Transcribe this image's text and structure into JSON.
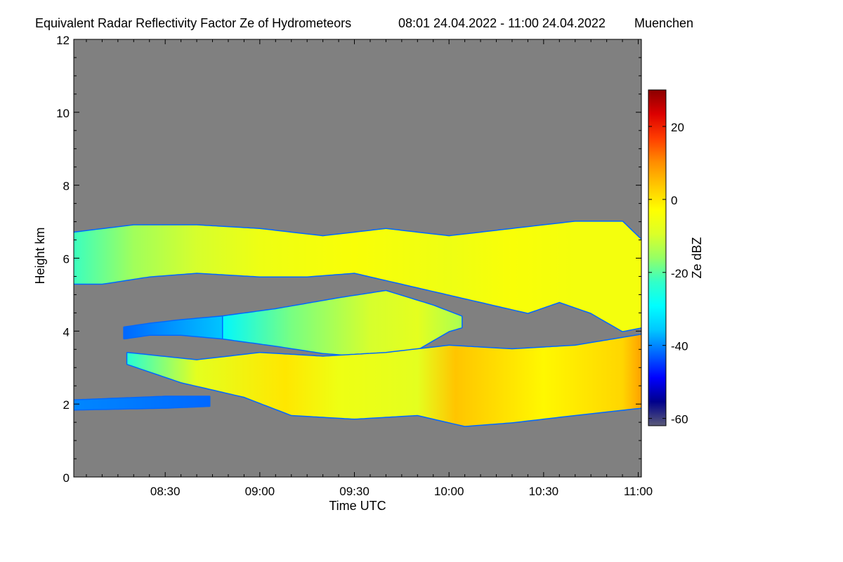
{
  "chart_data": {
    "type": "heatmap",
    "title": "Equivalent Radar Reflectivity Factor Ze of Hydrometeors",
    "time_range": "08:01 24.04.2022 - 11:00 24.04.2022",
    "location": "Muenchen",
    "xlabel": "Time UTC",
    "ylabel": "Height km",
    "xlim_minutes": [
      481,
      661
    ],
    "ylim": [
      0,
      12
    ],
    "x_ticks": [
      {
        "minutes": 510,
        "label": "08:30"
      },
      {
        "minutes": 540,
        "label": "09:00"
      },
      {
        "minutes": 570,
        "label": "09:30"
      },
      {
        "minutes": 600,
        "label": "10:00"
      },
      {
        "minutes": 630,
        "label": "10:30"
      },
      {
        "minutes": 660,
        "label": "11:00"
      }
    ],
    "y_ticks": [
      0,
      2,
      4,
      6,
      8,
      10,
      12
    ],
    "background_color": "#808080",
    "colorbar": {
      "label": "Ze dBZ",
      "range": [
        -62,
        30
      ],
      "ticks": [
        20,
        0,
        -20,
        -40,
        -60
      ],
      "colors": [
        "#5a5a78",
        "#00008c",
        "#0000ff",
        "#0064ff",
        "#00c8ff",
        "#00ffff",
        "#32ffc8",
        "#96ff64",
        "#dcff28",
        "#ffff00",
        "#ffc800",
        "#ff8c00",
        "#ff3c00",
        "#dc0000",
        "#8b0000"
      ]
    },
    "layers": [
      {
        "name": "upper-cloud-layer",
        "start": 481,
        "end": 661,
        "top": [
          [
            481,
            6.7
          ],
          [
            500,
            6.9
          ],
          [
            520,
            6.9
          ],
          [
            540,
            6.8
          ],
          [
            560,
            6.6
          ],
          [
            580,
            6.8
          ],
          [
            600,
            6.6
          ],
          [
            620,
            6.8
          ],
          [
            640,
            7.0
          ],
          [
            655,
            7.0
          ],
          [
            661,
            6.5
          ]
        ],
        "bottom": [
          [
            481,
            5.3
          ],
          [
            490,
            5.3
          ],
          [
            505,
            5.5
          ],
          [
            520,
            5.6
          ],
          [
            540,
            5.5
          ],
          [
            555,
            5.5
          ],
          [
            570,
            5.6
          ],
          [
            590,
            5.2
          ],
          [
            610,
            4.8
          ],
          [
            625,
            4.5
          ],
          [
            635,
            4.8
          ],
          [
            645,
            4.5
          ],
          [
            655,
            4.0
          ],
          [
            661,
            4.1
          ]
        ],
        "values": [
          [
            481,
            -22
          ],
          [
            500,
            -15
          ],
          [
            520,
            -10
          ],
          [
            540,
            -6
          ],
          [
            570,
            -4
          ],
          [
            600,
            -6
          ],
          [
            620,
            -4
          ],
          [
            640,
            -5
          ],
          [
            661,
            -5
          ]
        ]
      },
      {
        "name": "middle-cloud-layer",
        "start": 528,
        "end": 604,
        "top": [
          [
            528,
            4.4
          ],
          [
            545,
            4.6
          ],
          [
            565,
            4.9
          ],
          [
            580,
            5.1
          ],
          [
            595,
            4.7
          ],
          [
            604,
            4.4
          ]
        ],
        "bottom": [
          [
            528,
            3.8
          ],
          [
            545,
            3.6
          ],
          [
            560,
            3.4
          ],
          [
            575,
            3.3
          ],
          [
            590,
            3.5
          ],
          [
            600,
            4.0
          ],
          [
            604,
            4.1
          ]
        ],
        "values": [
          [
            528,
            -30
          ],
          [
            550,
            -18
          ],
          [
            575,
            -10
          ],
          [
            590,
            -8
          ],
          [
            604,
            -14
          ]
        ]
      },
      {
        "name": "lower-cloud-layer",
        "start": 498,
        "end": 661,
        "top": [
          [
            498,
            3.4
          ],
          [
            520,
            3.2
          ],
          [
            540,
            3.4
          ],
          [
            560,
            3.3
          ],
          [
            580,
            3.4
          ],
          [
            600,
            3.6
          ],
          [
            620,
            3.5
          ],
          [
            640,
            3.6
          ],
          [
            661,
            3.9
          ]
        ],
        "bottom": [
          [
            498,
            3.1
          ],
          [
            515,
            2.6
          ],
          [
            535,
            2.2
          ],
          [
            550,
            1.7
          ],
          [
            570,
            1.6
          ],
          [
            590,
            1.7
          ],
          [
            605,
            1.4
          ],
          [
            620,
            1.5
          ],
          [
            640,
            1.7
          ],
          [
            661,
            1.9
          ]
        ],
        "values": [
          [
            498,
            -24
          ],
          [
            520,
            -8
          ],
          [
            548,
            0
          ],
          [
            565,
            -6
          ],
          [
            590,
            -8
          ],
          [
            602,
            4
          ],
          [
            630,
            -2
          ],
          [
            655,
            2
          ],
          [
            661,
            8
          ]
        ]
      },
      {
        "name": "low-echo-streak",
        "start": 481,
        "end": 524,
        "top": [
          [
            481,
            2.1
          ],
          [
            510,
            2.2
          ],
          [
            524,
            2.2
          ]
        ],
        "bottom": [
          [
            481,
            1.85
          ],
          [
            510,
            1.9
          ],
          [
            524,
            1.95
          ]
        ],
        "values": [
          [
            481,
            -40
          ],
          [
            524,
            -42
          ]
        ]
      },
      {
        "name": "fragments-near-4km",
        "start": 497,
        "end": 528,
        "top": [
          [
            497,
            4.1
          ],
          [
            505,
            4.2
          ],
          [
            515,
            4.3
          ],
          [
            528,
            4.4
          ]
        ],
        "bottom": [
          [
            497,
            3.8
          ],
          [
            505,
            3.9
          ],
          [
            515,
            3.9
          ],
          [
            528,
            3.8
          ]
        ],
        "values": [
          [
            497,
            -42
          ],
          [
            528,
            -36
          ]
        ]
      }
    ]
  }
}
